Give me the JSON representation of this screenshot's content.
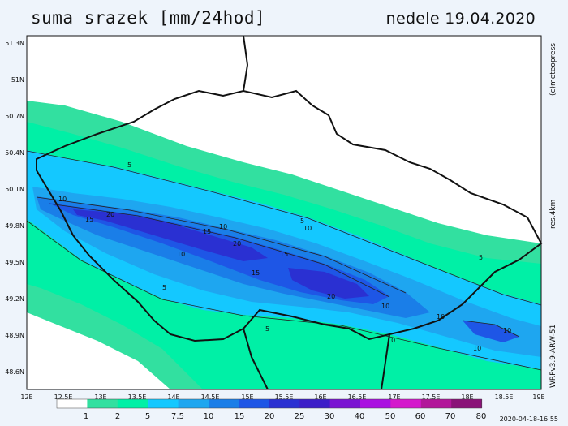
{
  "title": "suma srazek [mm/24hod]",
  "date": "nedele 19.04.2020",
  "copyright": "(c)meteopress",
  "resolution": "res.4km",
  "model": "WRFv3.9-ARW-51",
  "timestamp": "2020-04-18-16:55",
  "map": {
    "lat_labels": [
      "51.3N",
      "51N",
      "50.7N",
      "50.4N",
      "50.1N",
      "49.8N",
      "49.5N",
      "49.2N",
      "48.9N",
      "48.6N"
    ],
    "lon_labels": [
      "12E",
      "12.5E",
      "13E",
      "13.5E",
      "14E",
      "14.5E",
      "15E",
      "15.5E",
      "16E",
      "16.5E",
      "17E",
      "17.5E",
      "18E",
      "18.5E",
      "19E"
    ],
    "contour_labels": [
      "5",
      "10",
      "15",
      "20",
      "15",
      "20",
      "15",
      "10",
      "10",
      "15",
      "20",
      "10",
      "5",
      "10",
      "5",
      "5",
      "10",
      "10",
      "10",
      "10",
      "5"
    ]
  },
  "legend": {
    "values": [
      "1",
      "2",
      "5",
      "7.5",
      "10",
      "15",
      "20",
      "25",
      "30",
      "40",
      "50",
      "60",
      "70",
      "80"
    ],
    "colors": [
      "#ffffff",
      "#32e0a0",
      "#00f0a6",
      "#14c8ff",
      "#1ea6f0",
      "#1a7ee8",
      "#1e56e6",
      "#2a30d2",
      "#3c1ec8",
      "#7a14d2",
      "#aa10e0",
      "#d418cc",
      "#b2169a",
      "#8a1278"
    ]
  }
}
